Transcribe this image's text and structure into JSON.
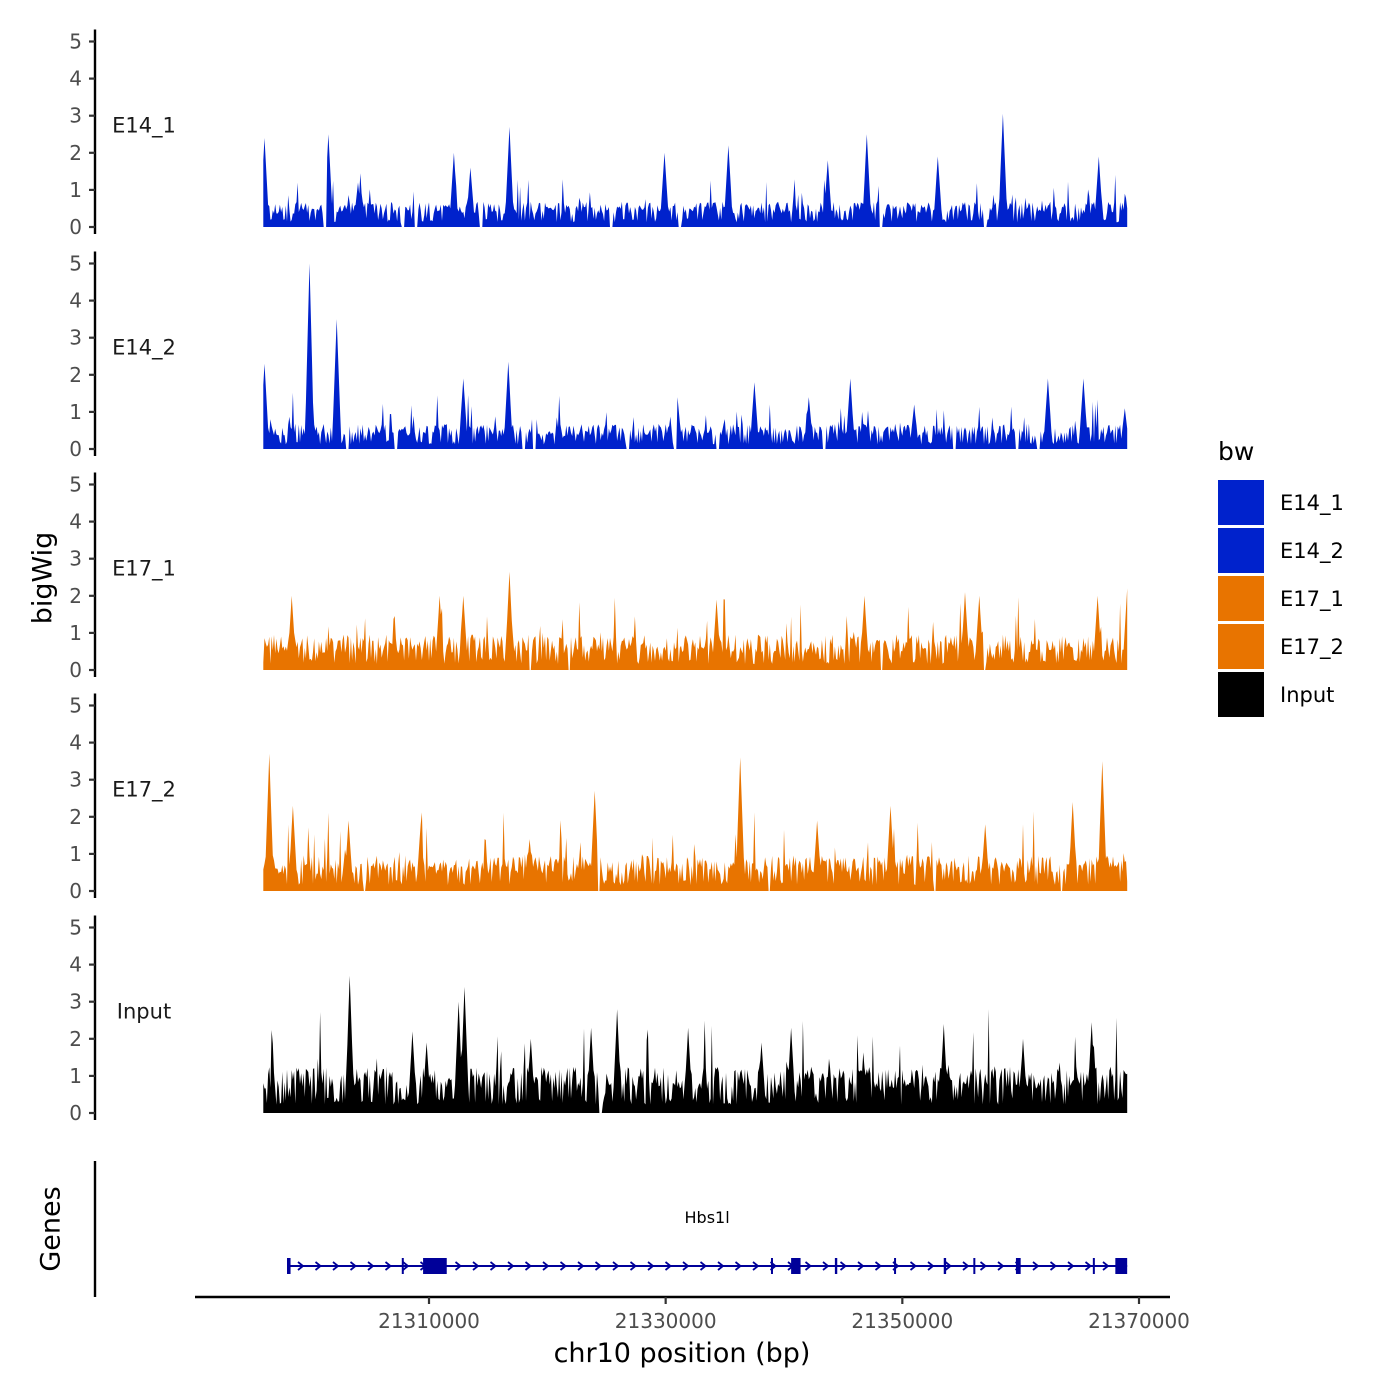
{
  "chart_data": {
    "type": "area",
    "title": "",
    "xlabel": "chr10 position (bp)",
    "ylabel": "bigWig",
    "xlim": [
      21292000,
      21370000
    ],
    "signal_range": [
      21296000,
      21369000
    ],
    "x_ticks": [
      21310000,
      21330000,
      21350000,
      21370000
    ],
    "x_tick_labels": [
      "21310000",
      "21330000",
      "21350000",
      "21370000"
    ],
    "y_ticks": [
      0,
      1,
      2,
      3,
      4,
      5
    ],
    "y_tick_labels": [
      "0",
      "1",
      "2",
      "3",
      "4",
      "5"
    ],
    "ylim": [
      0,
      5
    ],
    "legend": {
      "title": "bw",
      "position": "right",
      "entries": [
        {
          "label": "E14_1",
          "color": "#0022cc"
        },
        {
          "label": "E14_2",
          "color": "#0022cc"
        },
        {
          "label": "E17_1",
          "color": "#e87400"
        },
        {
          "label": "E17_2",
          "color": "#e87400"
        },
        {
          "label": "Input",
          "color": "#000000"
        }
      ]
    },
    "series": [
      {
        "name": "E14_1",
        "color": "#0022cc",
        "seed": 11,
        "base": 0.35,
        "noise": 0.55,
        "gaps": [
          [
            21301100,
            21301300
          ],
          [
            21307700,
            21307900
          ],
          [
            21308800,
            21309000
          ],
          [
            21314300,
            21314500
          ],
          [
            21325300,
            21325500
          ],
          [
            21331100,
            21331300
          ],
          [
            21348100,
            21348300
          ],
          [
            21356900,
            21357100
          ]
        ],
        "peaks": [
          [
            21296100,
            2.4
          ],
          [
            21301500,
            2.5
          ],
          [
            21304000,
            1.2
          ],
          [
            21313500,
            1.6
          ],
          [
            21312100,
            2.0
          ],
          [
            21316800,
            2.7
          ],
          [
            21329900,
            2.0
          ],
          [
            21335300,
            2.2
          ],
          [
            21343700,
            1.8
          ],
          [
            21347000,
            2.5
          ],
          [
            21353000,
            1.9
          ],
          [
            21358500,
            3.05
          ],
          [
            21366600,
            1.9
          ]
        ]
      },
      {
        "name": "E14_2",
        "color": "#0022cc",
        "seed": 23,
        "base": 0.35,
        "noise": 0.55,
        "gaps": [
          [
            21303000,
            21303200
          ],
          [
            21307100,
            21307300
          ],
          [
            21317900,
            21318100
          ],
          [
            21318800,
            21319000
          ],
          [
            21326700,
            21326900
          ],
          [
            21330700,
            21330900
          ],
          [
            21334300,
            21334500
          ],
          [
            21343300,
            21343500
          ],
          [
            21354300,
            21354500
          ],
          [
            21359600,
            21359800
          ],
          [
            21361400,
            21361600
          ]
        ],
        "peaks": [
          [
            21296100,
            2.3
          ],
          [
            21299900,
            5.0
          ],
          [
            21302200,
            3.5
          ],
          [
            21312900,
            1.9
          ],
          [
            21316700,
            2.35
          ],
          [
            21318900,
            1.6
          ],
          [
            21331000,
            1.4
          ],
          [
            21337500,
            1.8
          ],
          [
            21342100,
            1.4
          ],
          [
            21345600,
            1.9
          ],
          [
            21351000,
            1.2
          ],
          [
            21362300,
            1.9
          ],
          [
            21365300,
            1.9
          ],
          [
            21368800,
            1.1
          ]
        ]
      },
      {
        "name": "E17_1",
        "color": "#e87400",
        "seed": 37,
        "base": 0.45,
        "noise": 0.85,
        "gaps": [
          [
            21318500,
            21318600
          ],
          [
            21321800,
            21321900
          ],
          [
            21348200,
            21348300
          ],
          [
            21356900,
            21357000
          ]
        ],
        "peaks": [
          [
            21298400,
            2.0
          ],
          [
            21310900,
            2.0
          ],
          [
            21312900,
            2.0
          ],
          [
            21316800,
            2.65
          ],
          [
            21334300,
            1.9
          ],
          [
            21346800,
            2.0
          ],
          [
            21355300,
            2.1
          ],
          [
            21356500,
            2.0
          ],
          [
            21366500,
            2.0
          ],
          [
            21369000,
            2.2
          ]
        ]
      },
      {
        "name": "E17_2",
        "color": "#e87400",
        "seed": 51,
        "base": 0.45,
        "noise": 0.85,
        "gaps": [
          [
            21304500,
            21304600
          ],
          [
            21324300,
            21324400
          ],
          [
            21338700,
            21338800
          ],
          [
            21352700,
            21352800
          ],
          [
            21363400,
            21363500
          ]
        ],
        "peaks": [
          [
            21296500,
            3.7
          ],
          [
            21298500,
            2.3
          ],
          [
            21303200,
            1.9
          ],
          [
            21309300,
            1.8
          ],
          [
            21318500,
            1.4
          ],
          [
            21324000,
            2.7
          ],
          [
            21336300,
            3.6
          ],
          [
            21342800,
            1.9
          ],
          [
            21349000,
            2.3
          ],
          [
            21357000,
            1.8
          ],
          [
            21364400,
            2.4
          ],
          [
            21366900,
            3.5
          ]
        ]
      },
      {
        "name": "Input",
        "color": "#000000",
        "seed": 67,
        "base": 0.65,
        "noise": 1.0,
        "gaps": [
          [
            21324400,
            21324600
          ]
        ],
        "peaks": [
          [
            21303300,
            3.7
          ],
          [
            21308600,
            2.2
          ],
          [
            21309800,
            1.9
          ],
          [
            21313000,
            3.4
          ],
          [
            21312500,
            3.0
          ],
          [
            21318600,
            2.0
          ],
          [
            21323700,
            2.3
          ],
          [
            21325900,
            2.8
          ],
          [
            21331900,
            2.3
          ],
          [
            21338100,
            1.9
          ],
          [
            21340600,
            2.3
          ],
          [
            21353500,
            2.4
          ],
          [
            21360200,
            2.0
          ],
          [
            21366000,
            2.45
          ]
        ]
      }
    ],
    "genes_track": {
      "label": "Genes",
      "color": "#000099",
      "genes": [
        {
          "name": "Hbs1l",
          "strand": "+",
          "start": 21298000,
          "end": 21369000,
          "exons": [
            [
              21298000,
              21298300
            ],
            [
              21307700,
              21307800
            ],
            [
              21309500,
              21311500
            ],
            [
              21338900,
              21339000
            ],
            [
              21340600,
              21341400
            ],
            [
              21344300,
              21344500
            ],
            [
              21349300,
              21349400
            ],
            [
              21353500,
              21353700
            ],
            [
              21356000,
              21356100
            ],
            [
              21359600,
              21360000
            ],
            [
              21366100,
              21366200
            ],
            [
              21368000,
              21369000
            ]
          ]
        }
      ]
    }
  }
}
